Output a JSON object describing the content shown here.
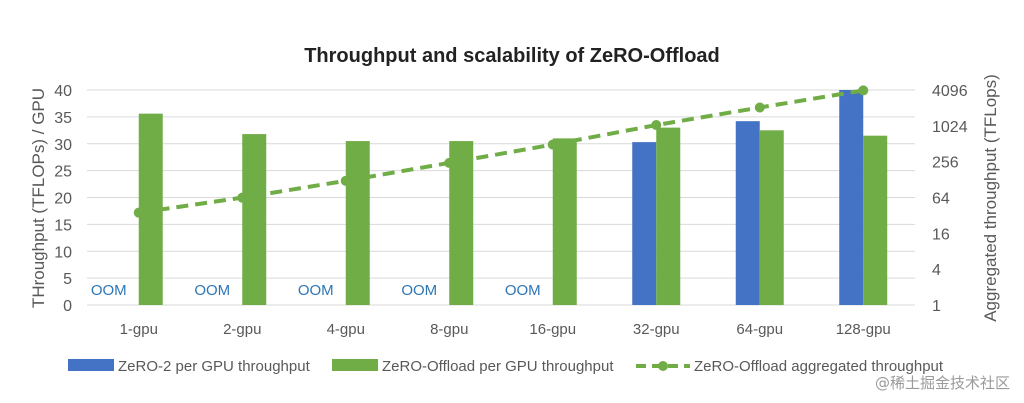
{
  "chart_data": {
    "type": "bar",
    "title": "Throughput and scalability of ZeRO-Offload",
    "ylabel": "THroughput (TFLOPs) / GPU",
    "y2label": "Aggregated throughput (TFLops)",
    "ylim": [
      0,
      40
    ],
    "yticks": [
      0,
      5,
      10,
      15,
      20,
      25,
      30,
      35,
      40
    ],
    "y2scale": "log2",
    "y2lim": [
      1,
      4096
    ],
    "y2ticks": [
      "1",
      "4",
      "16",
      "64",
      "256",
      "1024",
      "4096"
    ],
    "grid": true,
    "legend_position": "bottom",
    "categories": [
      "1-gpu",
      "2-gpu",
      "4-gpu",
      "8-gpu",
      "16-gpu",
      "32-gpu",
      "64-gpu",
      "128-gpu"
    ],
    "series": [
      {
        "name": "ZeRO-2 per GPU throughput",
        "kind": "bar",
        "axis": "left",
        "color": "#4472c4",
        "values": [
          null,
          null,
          null,
          null,
          null,
          30.3,
          34.2,
          40.0
        ],
        "labels": [
          "OOM",
          "OOM",
          "OOM",
          "OOM",
          "OOM",
          "",
          "",
          ""
        ]
      },
      {
        "name": "ZeRO-Offload per GPU throughput",
        "kind": "bar",
        "axis": "left",
        "color": "#70ad47",
        "values": [
          35.6,
          31.8,
          30.5,
          30.5,
          31.0,
          33.0,
          32.5,
          31.5
        ]
      },
      {
        "name": "ZeRO-Offload aggregated throughput",
        "kind": "line",
        "style": "dashed",
        "marker": "circle",
        "axis": "right",
        "color": "#70ad47",
        "values": [
          35.6,
          63.6,
          122,
          244,
          496,
          1056,
          2080,
          4032
        ]
      }
    ]
  },
  "watermark": "@稀土掘金技术社区"
}
